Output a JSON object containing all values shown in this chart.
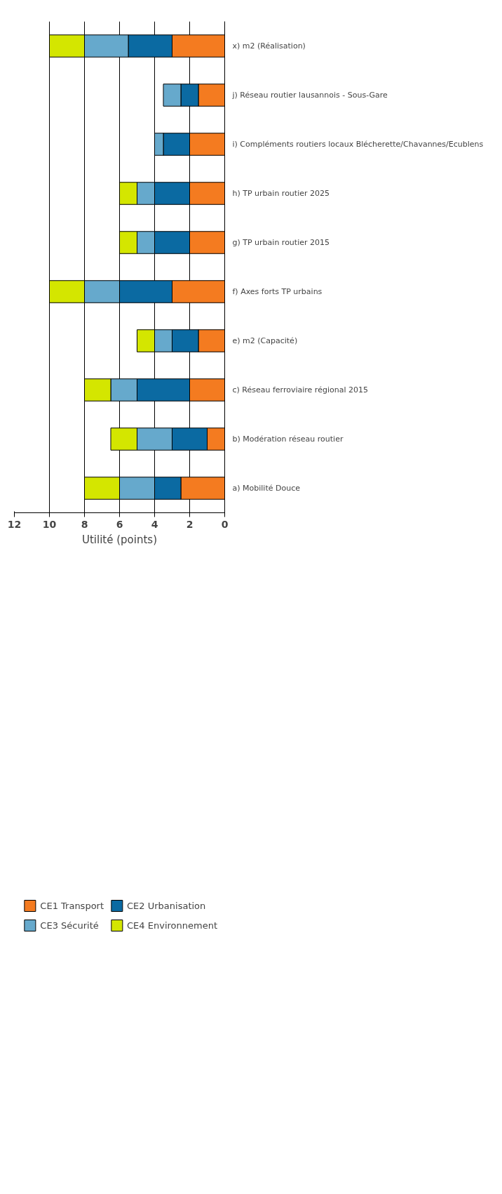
{
  "chart_data": {
    "type": "bar",
    "orientation": "horizontal",
    "stacked": true,
    "xlabel": "Utilité (points)",
    "categories": [
      "x) m2 (Réalisation)",
      "j) Réseau routier lausannois - Sous-Gare",
      "i) Compléments routiers locaux Blécherette/Chavannes/Ecublens",
      "h) TP urbain routier 2025",
      "g) TP urbain routier 2015",
      "f) Axes forts TP urbains",
      "e) m2 (Capacité)",
      "c) Réseau ferroviaire régional 2015",
      "b) Modération réseau routier",
      "a) Mobilité Douce"
    ],
    "series": [
      {
        "name": "CE1 Transport",
        "color": "#f47b20",
        "values": [
          3,
          1.5,
          2,
          2,
          2,
          3,
          1.5,
          2,
          1,
          2.5
        ]
      },
      {
        "name": "CE2 Urbanisation",
        "color": "#0b6aa2",
        "values": [
          2.5,
          1,
          1.5,
          2,
          2,
          3,
          1.5,
          3,
          2,
          1.5
        ]
      },
      {
        "name": "CE3 Sécurité",
        "color": "#66a9cc",
        "values": [
          2.5,
          1,
          0.5,
          1,
          1,
          2,
          1,
          1.5,
          2,
          2
        ]
      },
      {
        "name": "CE4 Environnement",
        "color": "#d4e600",
        "values": [
          2,
          0,
          0,
          1,
          1,
          2,
          1,
          1.5,
          1.5,
          2
        ]
      }
    ],
    "xlim": [
      12,
      0
    ],
    "xticks": [
      0,
      2,
      4,
      6,
      8,
      10,
      12
    ],
    "grid": "x",
    "legend": "bottom"
  }
}
